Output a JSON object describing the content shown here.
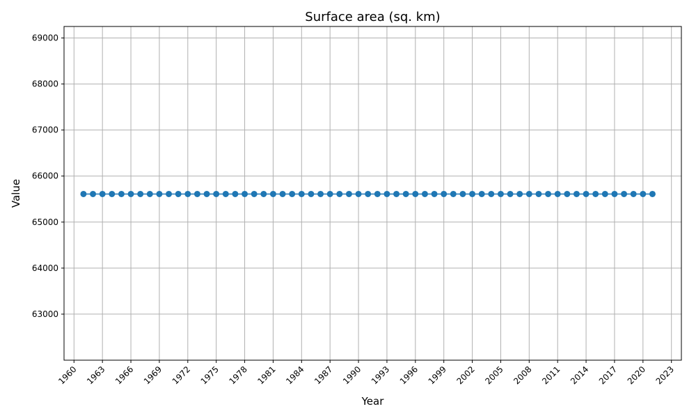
{
  "chart_data": {
    "type": "line",
    "title": "Surface area (sq. km)",
    "xlabel": "Year",
    "ylabel": "Value",
    "xlim": [
      1958.95,
      2024.05
    ],
    "ylim": [
      62000,
      69250
    ],
    "grid": true,
    "x_ticks": [
      1960,
      1963,
      1966,
      1969,
      1972,
      1975,
      1978,
      1981,
      1984,
      1987,
      1990,
      1993,
      1996,
      1999,
      2002,
      2005,
      2008,
      2011,
      2014,
      2017,
      2020,
      2023
    ],
    "y_ticks": [
      63000,
      64000,
      65000,
      66000,
      67000,
      68000,
      69000
    ],
    "color": "#1f77b4",
    "series": [
      {
        "x": [
          1961,
          1962,
          1963,
          1964,
          1965,
          1966,
          1967,
          1968,
          1969,
          1970,
          1971,
          1972,
          1973,
          1974,
          1975,
          1976,
          1977,
          1978,
          1979,
          1980,
          1981,
          1982,
          1983,
          1984,
          1985,
          1986,
          1987,
          1988,
          1989,
          1990,
          1991,
          1992,
          1993,
          1994,
          1995,
          1996,
          1997,
          1998,
          1999,
          2000,
          2001,
          2002,
          2003,
          2004,
          2005,
          2006,
          2007,
          2008,
          2009,
          2010,
          2011,
          2012,
          2013,
          2014,
          2015,
          2016,
          2017,
          2018,
          2019,
          2020,
          2021
        ],
        "values": [
          65610,
          65610,
          65610,
          65610,
          65610,
          65610,
          65610,
          65610,
          65610,
          65610,
          65610,
          65610,
          65610,
          65610,
          65610,
          65610,
          65610,
          65610,
          65610,
          65610,
          65610,
          65610,
          65610,
          65610,
          65610,
          65610,
          65610,
          65610,
          65610,
          65610,
          65610,
          65610,
          65610,
          65610,
          65610,
          65610,
          65610,
          65610,
          65610,
          65610,
          65610,
          65610,
          65610,
          65610,
          65610,
          65610,
          65610,
          65610,
          65610,
          65610,
          65610,
          65610,
          65610,
          65610,
          65610,
          65610,
          65610,
          65610,
          65610,
          65610,
          65610
        ]
      }
    ]
  }
}
